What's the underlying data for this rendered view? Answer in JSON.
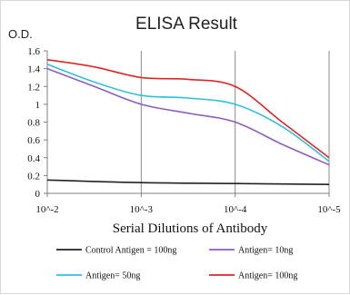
{
  "chart_data": {
    "type": "line",
    "title": "ELISA Result",
    "ylabel": "O.D.",
    "xlabel": "Serial Dilutions  of Antibody",
    "x": [
      "10^-2",
      "10^-3",
      "10^-4",
      "10^-5"
    ],
    "y_ticks": [
      "0",
      "0.2",
      "0.4",
      "0.6",
      "0.8",
      "1",
      "1.2",
      "1.4",
      "1.6"
    ],
    "ylim": [
      0,
      1.6
    ],
    "grid": "vertical",
    "legend_position": "bottom",
    "series": [
      {
        "name": "Control Antigen = 100ng",
        "color": "#222222",
        "points": [
          [
            0,
            0.15
          ],
          [
            1,
            0.12
          ],
          [
            2,
            0.11
          ],
          [
            3,
            0.1
          ]
        ]
      },
      {
        "name": "Antigen= 10ng",
        "color": "#8e5cc2",
        "points": [
          [
            0,
            1.4
          ],
          [
            0.5,
            1.2
          ],
          [
            1,
            1.0
          ],
          [
            1.5,
            0.9
          ],
          [
            2,
            0.8
          ],
          [
            2.5,
            0.55
          ],
          [
            3,
            0.32
          ]
        ]
      },
      {
        "name": "Antigen= 50ng",
        "color": "#2fbfe0",
        "points": [
          [
            0,
            1.45
          ],
          [
            0.5,
            1.25
          ],
          [
            1,
            1.1
          ],
          [
            1.5,
            1.07
          ],
          [
            2,
            1.0
          ],
          [
            2.5,
            0.75
          ],
          [
            3,
            0.36
          ]
        ]
      },
      {
        "name": "Antigen= 100ng",
        "color": "#e02424",
        "points": [
          [
            0,
            1.5
          ],
          [
            0.5,
            1.42
          ],
          [
            1,
            1.3
          ],
          [
            1.5,
            1.28
          ],
          [
            2,
            1.2
          ],
          [
            2.5,
            0.8
          ],
          [
            3,
            0.4
          ]
        ]
      }
    ]
  }
}
